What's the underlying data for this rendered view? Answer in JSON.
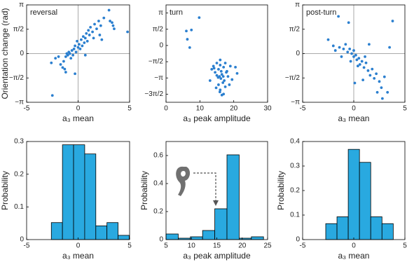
{
  "chart_data": [
    {
      "type": "scatter",
      "title": "reversal",
      "xlabel": "a₃ mean",
      "ylabel": "Orientation change (rad)",
      "color": "#2b7fcf",
      "zero_lines": true,
      "xlim": [
        -5,
        5
      ],
      "xticks": [
        -5,
        0,
        5
      ],
      "ylim": [
        -3.1416,
        3.1416
      ],
      "yticks": [
        {
          "value": -3.1416,
          "label": "−π"
        },
        {
          "value": -1.5708,
          "label": "−π/2"
        },
        0,
        {
          "value": 1.5708,
          "label": "π/2"
        },
        {
          "value": 3.1416,
          "label": "π"
        }
      ],
      "x": [
        -2.5,
        -2.6,
        -2.2,
        -1.9,
        -1.7,
        -1.5,
        -1.4,
        -1.3,
        -1.2,
        -1.1,
        -1.0,
        -0.9,
        -0.8,
        -0.7,
        -0.6,
        -0.5,
        -0.4,
        -0.3,
        -0.2,
        -0.1,
        0,
        0.1,
        0.2,
        0.3,
        0.4,
        0.5,
        0.6,
        0.7,
        0.8,
        0.9,
        1.0,
        1.1,
        1.2,
        1.4,
        1.5,
        1.6,
        1.8,
        2.0,
        2.2,
        2.5,
        2.3,
        3.1,
        3.3,
        3.4,
        3.5,
        2.1,
        -0.3,
        0.7,
        -1.2,
        4.8,
        3.0
      ],
      "values": [
        -2.7,
        -0.6,
        -0.3,
        -0.2,
        -0.7,
        -0.9,
        -0.5,
        -1.0,
        -0.2,
        0.0,
        -0.1,
        0.1,
        0.0,
        -0.3,
        0.2,
        -0.1,
        0.3,
        0.5,
        0.1,
        0.8,
        0.4,
        0.6,
        0.3,
        0.9,
        0.5,
        1.1,
        0.7,
        1.0,
        1.3,
        0.8,
        1.5,
        1.2,
        1.7,
        1.4,
        1.0,
        1.9,
        1.6,
        2.1,
        1.8,
        2.3,
        0.9,
        2.1,
        2.0,
        1.8,
        1.6,
        1.2,
        -1.3,
        -0.1,
        -1.2,
        1.4,
        2.8
      ]
    },
    {
      "type": "scatter",
      "title": "turn",
      "xlabel": "a₃  peak amplitude",
      "color": "#2b7fcf",
      "zero_lines": false,
      "xlim": [
        0,
        30
      ],
      "xticks": [
        0,
        10,
        20,
        30
      ],
      "ylim": [
        -5.4978,
        3.927
      ],
      "yticks": [
        {
          "value": -4.7124,
          "label": "−3π/2"
        },
        {
          "value": -3.1416,
          "label": "−π"
        },
        {
          "value": -1.5708,
          "label": "−π/2"
        },
        0,
        {
          "value": 1.5708,
          "label": "π/2"
        },
        {
          "value": 3.1416,
          "label": "π"
        }
      ],
      "x": [
        9.8,
        6.0,
        7.5,
        6.3,
        7.0,
        16,
        15,
        14,
        15.5,
        17,
        18,
        16.5,
        15.8,
        16.2,
        17.2,
        16.8,
        15.4,
        14.5,
        13.5,
        19,
        20.5,
        21,
        17.5,
        16,
        17,
        16.5,
        15.5,
        14.8,
        18.3,
        19.5,
        16.3,
        17.8,
        15,
        13,
        16,
        17.5,
        14.2,
        16.9,
        18.7,
        15.9
      ],
      "values": [
        2.7,
        1.4,
        1.5,
        0.6,
        -0.2,
        -1.4,
        -1.7,
        -2.0,
        -2.3,
        -2.1,
        -2.5,
        -2.8,
        -3.0,
        -3.2,
        -3.4,
        -3.6,
        -3.1,
        -2.6,
        -2.3,
        -2.0,
        -2.1,
        -2.7,
        -4.0,
        -4.3,
        -4.7,
        -4.8,
        -3.8,
        -4.1,
        -3.0,
        -3.3,
        -2.5,
        -2.6,
        -2.9,
        -3.4,
        -1.9,
        -1.7,
        -2.2,
        -3.0,
        -3.8,
        -4.5
      ]
    },
    {
      "type": "scatter",
      "title": "post-turn",
      "xlabel": "a₃ mean",
      "color": "#2b7fcf",
      "zero_lines": true,
      "xlim": [
        -5,
        5
      ],
      "xticks": [
        -5,
        0,
        5
      ],
      "ylim": [
        -3.1416,
        3.1416
      ],
      "yticks": [
        {
          "value": -3.1416,
          "label": "−π"
        },
        {
          "value": -1.5708,
          "label": "−π/2"
        },
        0,
        {
          "value": 1.5708,
          "label": "π/2"
        },
        {
          "value": 3.1416,
          "label": "π"
        }
      ],
      "x": [
        -1.5,
        -0.5,
        -2.5,
        -2.0,
        -1.8,
        -1.4,
        -1.0,
        -0.8,
        -0.6,
        -0.4,
        -0.2,
        0,
        0,
        0.2,
        0.3,
        0.5,
        0.6,
        0.8,
        1.0,
        1.2,
        1.4,
        1.6,
        1.8,
        2.0,
        2.2,
        2.5,
        2.7,
        2.8,
        3.0,
        3.3,
        3.5,
        3.8,
        1.5,
        -1.2,
        0.9,
        0.1,
        2.3,
        0.4,
        -0.3,
        1.1
      ],
      "values": [
        2.4,
        2.0,
        0.9,
        0.5,
        0.2,
        0.4,
        0.3,
        0.6,
        0.1,
        0.3,
        0.0,
        0.2,
        -0.2,
        -0.1,
        -0.4,
        -0.3,
        -0.7,
        -0.5,
        -0.9,
        -0.6,
        -1.1,
        -1.4,
        -1.0,
        -1.6,
        -1.3,
        -1.8,
        -2.2,
        -2.9,
        -1.5,
        -2.5,
        0.4,
        2.1,
        0.6,
        -0.2,
        -1.7,
        -1.9,
        -2.5,
        -0.8,
        -0.5,
        -0.2
      ]
    },
    {
      "type": "histogram",
      "xlabel": "a₃ mean",
      "ylabel": "Probability",
      "color": "#29a9e0",
      "xlim": [
        -5,
        5
      ],
      "xticks": [
        -5,
        0,
        5
      ],
      "ylim": [
        0,
        0.3
      ],
      "yticks": [
        0,
        0.1,
        0.2,
        0.3
      ],
      "bins": [
        -2.6,
        -1.52,
        -0.44,
        0.64,
        1.72,
        2.8,
        3.88,
        4.96
      ],
      "values": [
        0.052,
        0.29,
        0.29,
        0.262,
        0.042,
        0.052,
        0.013
      ]
    },
    {
      "type": "histogram",
      "xlabel": "a₃ peak amplitude",
      "ylabel": "Probability",
      "color": "#29a9e0",
      "xlim": [
        5,
        25
      ],
      "xticks": [
        5,
        10,
        15,
        20,
        25
      ],
      "ylim": [
        0,
        0.7
      ],
      "yticks": [
        0,
        0.2,
        0.4,
        0.6
      ],
      "bins": [
        5,
        7.4,
        9.8,
        12.2,
        14.6,
        17,
        19.4,
        21.8,
        24.2
      ],
      "values": [
        0.04,
        0.01,
        0.02,
        0.065,
        0.22,
        0.605,
        0.01,
        0.02
      ]
    },
    {
      "type": "histogram",
      "xlabel": "a₃ mean",
      "ylabel": "Probability",
      "color": "#29a9e0",
      "xlim": [
        -5,
        5
      ],
      "xticks": [
        -5,
        0,
        5
      ],
      "ylim": [
        0,
        0.4
      ],
      "yticks": [
        0,
        0.1,
        0.2,
        0.3,
        0.4
      ],
      "bins": [
        -2.74,
        -1.64,
        -0.54,
        0.56,
        1.66,
        2.76,
        3.86
      ],
      "values": [
        0.065,
        0.093,
        0.368,
        0.315,
        0.093,
        0.065
      ]
    }
  ]
}
